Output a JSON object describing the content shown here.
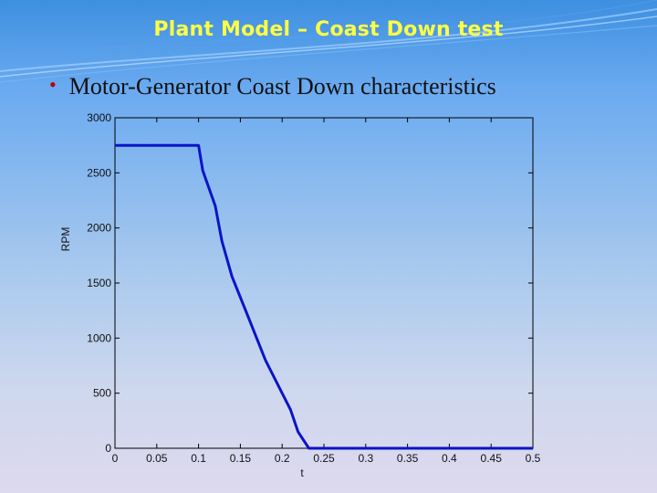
{
  "slide": {
    "title": "Plant Model – Coast Down test",
    "bullet": "Motor-Generator Coast Down characteristics"
  },
  "colors": {
    "title": "#ffff44",
    "series_line": "#0a14c8",
    "bullet_marker": "#c00000"
  },
  "chart_data": {
    "type": "line",
    "title": "",
    "xlabel": "t",
    "ylabel": "RPM",
    "xlim": [
      0,
      0.5
    ],
    "ylim": [
      0,
      3000
    ],
    "grid": false,
    "xticks": [
      0,
      0.05,
      0.1,
      0.15,
      0.2,
      0.25,
      0.3,
      0.35,
      0.4,
      0.45,
      0.5
    ],
    "xtick_labels": [
      "0",
      "0.05",
      "0.1",
      "0.15",
      "0.2",
      "0.25",
      "0.3",
      "0.35",
      "0.4",
      "0.45",
      "0.5"
    ],
    "yticks": [
      0,
      500,
      1000,
      1500,
      2000,
      2500,
      3000
    ],
    "ytick_labels": [
      "0",
      "500",
      "1000",
      "1500",
      "2000",
      "2500",
      "3000"
    ],
    "series": [
      {
        "x": [
          0,
          0.1,
          0.105,
          0.12,
          0.128,
          0.14,
          0.16,
          0.18,
          0.2,
          0.21,
          0.219,
          0.232,
          0.24,
          0.5
        ],
        "y": [
          2750,
          2750,
          2520,
          2200,
          1880,
          1560,
          1180,
          800,
          500,
          350,
          150,
          0,
          0,
          0
        ]
      }
    ]
  }
}
